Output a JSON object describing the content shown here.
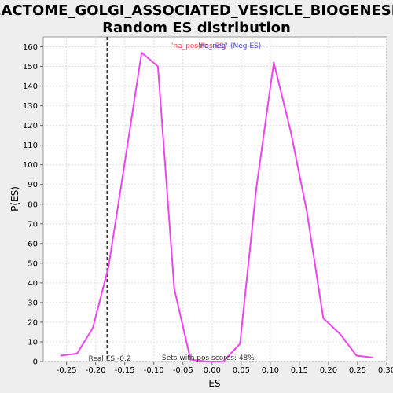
{
  "chart_data": {
    "type": "line",
    "title_line1": "REACTOME_GOLGI_ASSOCIATED_VESICLE_BIOGENESIS:",
    "title_line2": "Random ES distribution",
    "xlabel": "ES",
    "ylabel": "P(ES)",
    "xlim": [
      -0.29,
      0.3
    ],
    "ylim": [
      0,
      165
    ],
    "xticks": [
      -0.25,
      -0.2,
      -0.15,
      -0.1,
      -0.05,
      0.0,
      0.05,
      0.1,
      0.15,
      0.2,
      0.25,
      0.3
    ],
    "xtick_labels": [
      "-0.25",
      "-0.20",
      "-0.15",
      "-0.10",
      "-0.05",
      "0.00",
      "0.05",
      "0.10",
      "0.15",
      "0.20",
      "0.25",
      "0.30"
    ],
    "yticks": [
      0,
      10,
      20,
      30,
      40,
      50,
      60,
      70,
      80,
      90,
      100,
      110,
      120,
      130,
      140,
      150,
      160
    ],
    "ytick_labels": [
      "0",
      "10",
      "20",
      "30",
      "40",
      "50",
      "60",
      "70",
      "80",
      "90",
      "100",
      "110",
      "120",
      "130",
      "140",
      "150",
      "160"
    ],
    "grid": true,
    "series": [
      {
        "color": "#ee44ee",
        "x": [
          -0.26,
          -0.232,
          -0.205,
          -0.178,
          -0.15,
          -0.121,
          -0.093,
          -0.065,
          -0.037,
          -0.009,
          0.019,
          0.048,
          0.076,
          0.106,
          0.135,
          0.163,
          0.191,
          0.22,
          0.248,
          0.276
        ],
        "y": [
          3,
          4,
          17,
          48,
          101,
          157,
          150,
          37,
          1,
          0,
          0,
          9,
          88,
          152,
          117,
          76,
          22,
          14,
          3,
          2
        ]
      }
    ],
    "real_es": -0.18,
    "real_es_label": "Real ES -0.2",
    "pos_scores_label": "Sets with pos scores: 48%",
    "legend": {
      "placement": "top-center",
      "pos_text": "'na_pos'",
      "pos_color": "#ee4444",
      "neg_text": "'na_neg'",
      "neg_color": "#4444cc",
      "pos_es_text": "(Pos ES)",
      "neg_es_text": "(Neg ES)"
    }
  }
}
